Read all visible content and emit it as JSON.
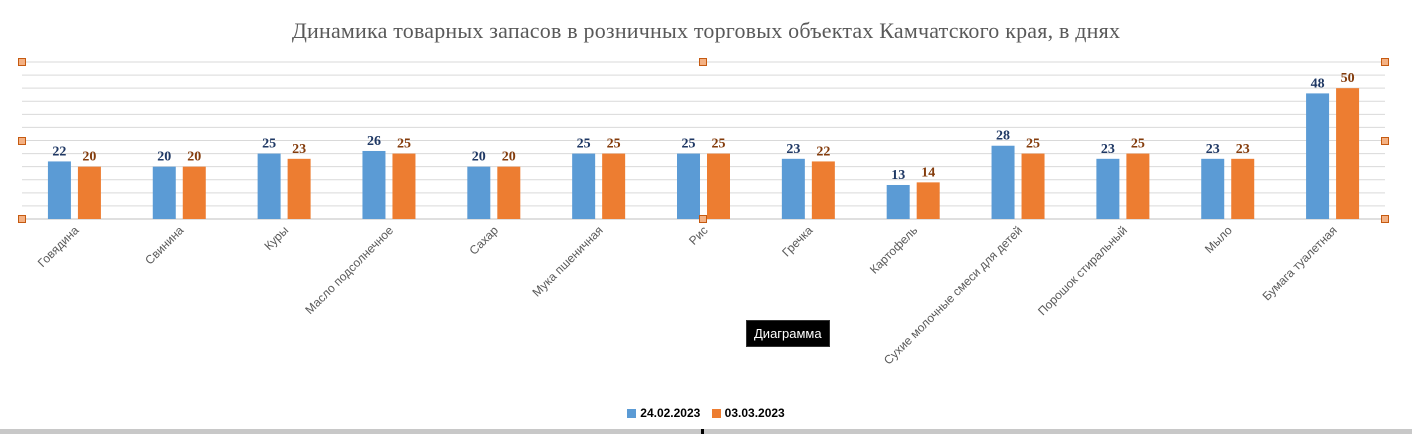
{
  "chart_data": {
    "type": "bar",
    "title": "Динамика товарных запасов в розничных торговых объектах Камчатского края, в днях",
    "categories": [
      "Говядина",
      "Свинина",
      "Куры",
      "Масло подсолнечное",
      "Сахар",
      "Мука пшеничная",
      "Рис",
      "Гречка",
      "Картофель",
      "Сухие молочные смеси для детей",
      "Порошок стиральный",
      "Мыло",
      "Бумага туалетная"
    ],
    "series": [
      {
        "name": "24.02.2023",
        "color": "#5b9bd5",
        "label_color": "#1f3864",
        "values": [
          22,
          20,
          25,
          26,
          20,
          25,
          25,
          23,
          13,
          28,
          23,
          23,
          48
        ]
      },
      {
        "name": "03.03.2023",
        "color": "#ed7d31",
        "label_color": "#843c0c",
        "values": [
          20,
          20,
          23,
          25,
          20,
          25,
          25,
          22,
          14,
          25,
          25,
          23,
          50
        ]
      }
    ],
    "ylim": [
      0,
      60
    ],
    "grid": true,
    "legend": "bottom"
  },
  "tooltip": "Диаграмма"
}
